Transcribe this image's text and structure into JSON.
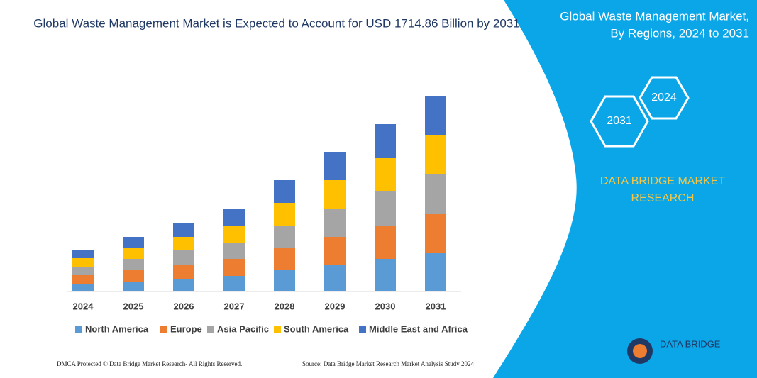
{
  "chart_data": {
    "type": "stacked_bar",
    "title": "Global Waste Management Market is Expected to Account for USD 1714.86 Billion by 2031",
    "categories": [
      "2024",
      "2025",
      "2026",
      "2027",
      "2028",
      "2029",
      "2030",
      "2031"
    ],
    "series": [
      {
        "name": "North America",
        "color": "#5b9bd5",
        "values": [
          11,
          14,
          18,
          22,
          30,
          38,
          46,
          54
        ]
      },
      {
        "name": "Europe",
        "color": "#ed7d31",
        "values": [
          12,
          16,
          20,
          24,
          32,
          39,
          47,
          55
        ]
      },
      {
        "name": "Asia Pacific",
        "color": "#a5a5a5",
        "values": [
          12,
          16,
          20,
          23,
          31,
          40,
          48,
          56
        ]
      },
      {
        "name": "South America",
        "color": "#ffc000",
        "values": [
          12,
          16,
          19,
          24,
          32,
          40,
          47,
          55
        ]
      },
      {
        "name": "Middle East and Africa",
        "color": "#4472c4",
        "values": [
          12,
          15,
          20,
          24,
          32,
          39,
          48,
          55
        ]
      }
    ],
    "ylim": [
      0,
      275
    ],
    "legend": "bottom"
  },
  "panel": {
    "title_lines": [
      "Global Waste Management Market,",
      "By Regions, 2024 to 2031"
    ],
    "hexagons": [
      "2024",
      "2031"
    ],
    "brand_lines": [
      "DATA BRIDGE MARKET",
      "RESEARCH"
    ],
    "logo": "DATA BRIDGE"
  },
  "footer": {
    "left": "DMCA Protected © Data Bridge Market Research- All Rights Reserved.",
    "right": "Source: Data Bridge Market Research Market Analysis Study 2024"
  }
}
